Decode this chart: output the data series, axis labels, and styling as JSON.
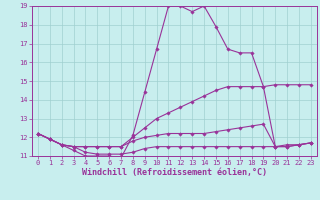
{
  "xlabel": "Windchill (Refroidissement éolien,°C)",
  "xlim": [
    -0.5,
    23.5
  ],
  "ylim": [
    11,
    19
  ],
  "yticks": [
    11,
    12,
    13,
    14,
    15,
    16,
    17,
    18,
    19
  ],
  "xticks": [
    0,
    1,
    2,
    3,
    4,
    5,
    6,
    7,
    8,
    9,
    10,
    11,
    12,
    13,
    14,
    15,
    16,
    17,
    18,
    19,
    20,
    21,
    22,
    23
  ],
  "bg_color": "#c8eeee",
  "grid_color": "#a0d0d0",
  "line_color": "#993399",
  "lines": [
    {
      "x": [
        0,
        1,
        2,
        3,
        4,
        5,
        6,
        7,
        8,
        9,
        10,
        11,
        12,
        13,
        14,
        15,
        16,
        17,
        18,
        19,
        20,
        21,
        22,
        23
      ],
      "y": [
        12.2,
        11.9,
        11.6,
        11.3,
        11.0,
        11.0,
        11.0,
        10.9,
        12.1,
        14.4,
        16.7,
        19.0,
        19.0,
        18.7,
        19.0,
        17.9,
        16.7,
        16.5,
        16.5,
        14.7,
        14.8,
        14.8,
        14.8,
        14.8
      ]
    },
    {
      "x": [
        0,
        1,
        2,
        3,
        4,
        5,
        6,
        7,
        8,
        9,
        10,
        11,
        12,
        13,
        14,
        15,
        16,
        17,
        18,
        19,
        20,
        21,
        22,
        23
      ],
      "y": [
        12.2,
        11.9,
        11.6,
        11.5,
        11.5,
        11.5,
        11.5,
        11.5,
        12.0,
        12.5,
        13.0,
        13.3,
        13.6,
        13.9,
        14.2,
        14.5,
        14.7,
        14.7,
        14.7,
        14.7,
        11.5,
        11.6,
        11.6,
        11.7
      ]
    },
    {
      "x": [
        0,
        1,
        2,
        3,
        4,
        5,
        6,
        7,
        8,
        9,
        10,
        11,
        12,
        13,
        14,
        15,
        16,
        17,
        18,
        19,
        20,
        21,
        22,
        23
      ],
      "y": [
        12.2,
        11.9,
        11.6,
        11.5,
        11.5,
        11.5,
        11.5,
        11.5,
        11.8,
        12.0,
        12.1,
        12.2,
        12.2,
        12.2,
        12.2,
        12.3,
        12.4,
        12.5,
        12.6,
        12.7,
        11.5,
        11.5,
        11.6,
        11.7
      ]
    },
    {
      "x": [
        0,
        1,
        2,
        3,
        4,
        5,
        6,
        7,
        8,
        9,
        10,
        11,
        12,
        13,
        14,
        15,
        16,
        17,
        18,
        19,
        20,
        21,
        22,
        23
      ],
      "y": [
        12.2,
        11.9,
        11.6,
        11.5,
        11.2,
        11.1,
        11.1,
        11.1,
        11.2,
        11.4,
        11.5,
        11.5,
        11.5,
        11.5,
        11.5,
        11.5,
        11.5,
        11.5,
        11.5,
        11.5,
        11.5,
        11.5,
        11.6,
        11.7
      ]
    }
  ],
  "tick_fontsize": 5.0,
  "xlabel_fontsize": 6.0,
  "marker": "D",
  "markersize": 1.8,
  "linewidth": 0.8
}
